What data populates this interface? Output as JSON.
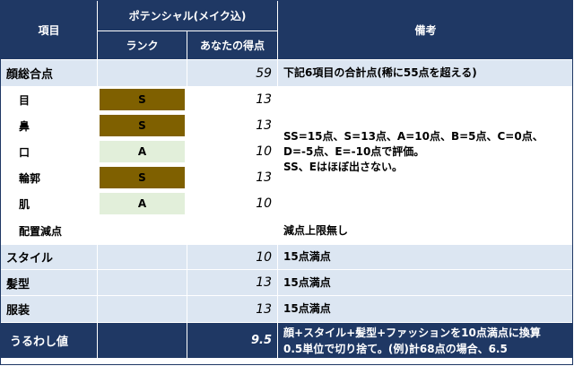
{
  "header": {
    "col_item": "項目",
    "col_potential": "ポテンシャル(メイク込)",
    "col_rank": "ランク",
    "col_score": "あなたの得点",
    "col_notes": "備考"
  },
  "rows": [
    {
      "label": "顔総合点",
      "rank": "",
      "score": "59",
      "note": "下記6項目の合計点(稀に55点を超える)"
    },
    {
      "label": "目",
      "rank": "S",
      "score": "13"
    },
    {
      "label": "鼻",
      "rank": "S",
      "score": "13"
    },
    {
      "label": "口",
      "rank": "A",
      "score": "10"
    },
    {
      "label": "輪郭",
      "rank": "S",
      "score": "13"
    },
    {
      "label": "肌",
      "rank": "A",
      "score": "10"
    },
    {
      "label": "配置減点",
      "rank": "",
      "score": "",
      "note": "減点上限無し"
    },
    {
      "label": "スタイル",
      "rank": "",
      "score": "10",
      "note": "15点満点"
    },
    {
      "label": "髪型",
      "rank": "",
      "score": "13",
      "note": "15点満点"
    },
    {
      "label": "服装",
      "rank": "",
      "score": "13",
      "note": "15点満点"
    }
  ],
  "merged_note": {
    "line1": "SS=15点、S=13点、A=10点、B=5点、C=0点、",
    "line2": "D=-5点、E=-10点で評価。",
    "line3": "SS、Eはほぼ出さない。"
  },
  "footer": {
    "label": "うるわし値",
    "score": "9.5",
    "note_line1": "顔+スタイル+髪型+ファッションを10点満点に換算",
    "note_line2": "0.5単位で切り捨て。(例)計68点の場合、6.5"
  },
  "colors": {
    "header_bg": "#1f3864",
    "row_blue": "#dce6f2",
    "rank_s": "#7f6000",
    "rank_a": "#e2efda"
  }
}
